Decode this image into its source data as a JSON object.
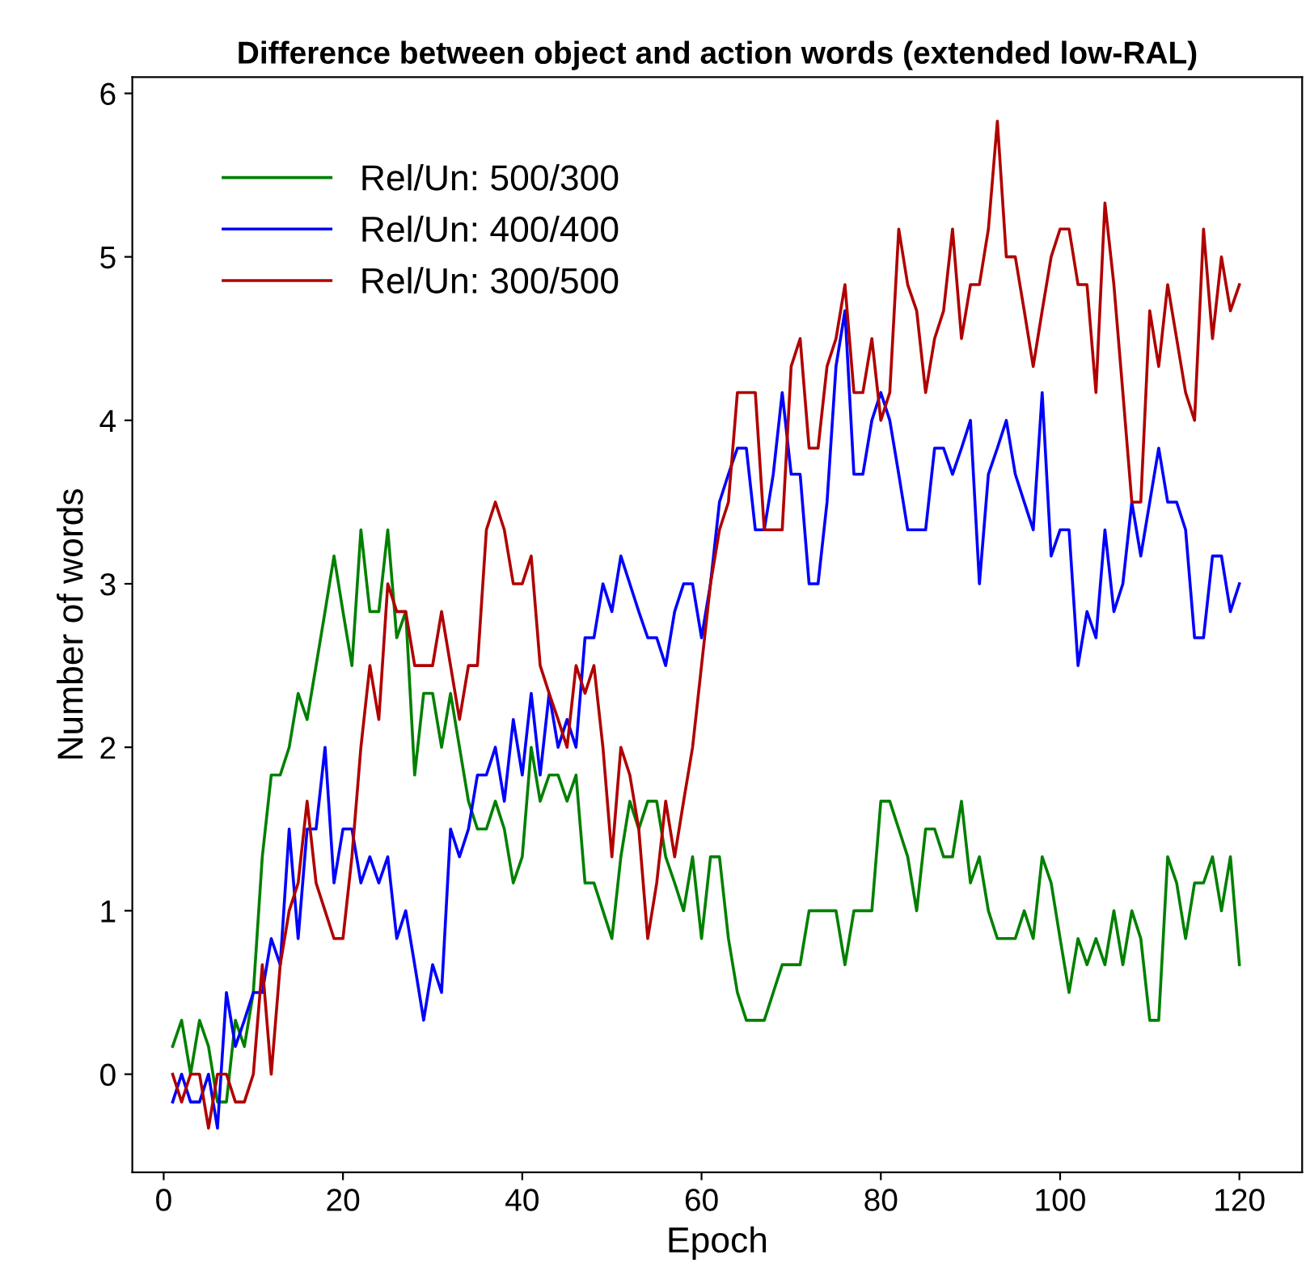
{
  "chart_data": {
    "type": "line",
    "title": "Difference between object and action words (extended low-RAL)",
    "xlabel": "Epoch",
    "ylabel": "Number of words",
    "x": [
      1,
      2,
      3,
      4,
      5,
      6,
      7,
      8,
      9,
      10,
      11,
      12,
      13,
      14,
      15,
      16,
      17,
      18,
      19,
      20,
      21,
      22,
      23,
      24,
      25,
      26,
      27,
      28,
      29,
      30,
      31,
      32,
      33,
      34,
      35,
      36,
      37,
      38,
      39,
      40,
      41,
      42,
      43,
      44,
      45,
      46,
      47,
      48,
      49,
      50,
      51,
      52,
      53,
      54,
      55,
      56,
      57,
      58,
      59,
      60,
      61,
      62,
      63,
      64,
      65,
      66,
      67,
      68,
      69,
      70,
      71,
      72,
      73,
      74,
      75,
      76,
      77,
      78,
      79,
      80,
      81,
      82,
      83,
      84,
      85,
      86,
      87,
      88,
      89,
      90,
      91,
      92,
      93,
      94,
      95,
      96,
      97,
      98,
      99,
      100,
      101,
      102,
      103,
      104,
      105,
      106,
      107,
      108,
      109,
      110,
      111,
      112,
      113,
      114,
      115,
      116,
      117,
      118,
      119,
      120
    ],
    "series": [
      {
        "name": "Rel/Un: 500/300",
        "color": "#008000",
        "values": [
          0.17,
          0.33,
          0.0,
          0.33,
          0.17,
          -0.17,
          -0.17,
          0.33,
          0.17,
          0.5,
          1.33,
          1.83,
          1.83,
          2.0,
          2.33,
          2.17,
          2.5,
          2.83,
          3.17,
          2.83,
          2.5,
          3.33,
          2.83,
          2.83,
          3.33,
          2.67,
          2.83,
          1.83,
          2.33,
          2.33,
          2.0,
          2.33,
          2.0,
          1.67,
          1.5,
          1.5,
          1.67,
          1.5,
          1.17,
          1.33,
          2.0,
          1.67,
          1.83,
          1.83,
          1.67,
          1.83,
          1.17,
          1.17,
          1.0,
          0.83,
          1.33,
          1.67,
          1.5,
          1.67,
          1.67,
          1.33,
          1.17,
          1.0,
          1.33,
          0.83,
          1.33,
          1.33,
          0.83,
          0.5,
          0.33,
          0.33,
          0.33,
          0.5,
          0.67,
          0.67,
          0.67,
          1.0,
          1.0,
          1.0,
          1.0,
          0.67,
          1.0,
          1.0,
          1.0,
          1.67,
          1.67,
          1.5,
          1.33,
          1.0,
          1.5,
          1.5,
          1.33,
          1.33,
          1.67,
          1.17,
          1.33,
          1.0,
          0.83,
          0.83,
          0.83,
          1.0,
          0.83,
          1.33,
          1.17,
          0.83,
          0.5,
          0.83,
          0.67,
          0.83,
          0.67,
          1.0,
          0.67,
          1.0,
          0.83,
          0.33,
          0.33,
          1.33,
          1.17,
          0.83,
          1.17,
          1.17,
          1.33,
          1.0,
          1.33,
          0.67
        ]
      },
      {
        "name": "Rel/Un: 400/400",
        "color": "#0000ff",
        "values": [
          -0.17,
          0.0,
          -0.17,
          -0.17,
          0.0,
          -0.33,
          0.5,
          0.17,
          0.33,
          0.5,
          0.5,
          0.83,
          0.67,
          1.5,
          0.83,
          1.5,
          1.5,
          2.0,
          1.17,
          1.5,
          1.5,
          1.17,
          1.33,
          1.17,
          1.33,
          0.83,
          1.0,
          0.67,
          0.33,
          0.67,
          0.5,
          1.5,
          1.33,
          1.5,
          1.83,
          1.83,
          2.0,
          1.67,
          2.17,
          1.83,
          2.33,
          1.83,
          2.33,
          2.0,
          2.17,
          2.0,
          2.67,
          2.67,
          3.0,
          2.83,
          3.17,
          3.0,
          2.83,
          2.67,
          2.67,
          2.5,
          2.83,
          3.0,
          3.0,
          2.67,
          3.0,
          3.5,
          3.67,
          3.83,
          3.83,
          3.33,
          3.33,
          3.67,
          4.17,
          3.67,
          3.67,
          3.0,
          3.0,
          3.5,
          4.33,
          4.67,
          3.67,
          3.67,
          4.0,
          4.17,
          4.0,
          3.67,
          3.33,
          3.33,
          3.33,
          3.83,
          3.83,
          3.67,
          3.83,
          4.0,
          3.0,
          3.67,
          3.83,
          4.0,
          3.67,
          3.5,
          3.33,
          4.17,
          3.17,
          3.33,
          3.33,
          2.5,
          2.83,
          2.67,
          3.33,
          2.83,
          3.0,
          3.5,
          3.17,
          3.5,
          3.83,
          3.5,
          3.5,
          3.33,
          2.67,
          2.67,
          3.17,
          3.17,
          2.83,
          3.0
        ]
      },
      {
        "name": "Rel/Un: 300/500",
        "color": "#b00000",
        "values": [
          0.0,
          -0.17,
          0.0,
          0.0,
          -0.33,
          0.0,
          0.0,
          -0.17,
          -0.17,
          0.0,
          0.67,
          0.0,
          0.67,
          1.0,
          1.17,
          1.67,
          1.17,
          1.0,
          0.83,
          0.83,
          1.33,
          2.0,
          2.5,
          2.17,
          3.0,
          2.83,
          2.83,
          2.5,
          2.5,
          2.5,
          2.83,
          2.5,
          2.17,
          2.5,
          2.5,
          3.33,
          3.5,
          3.33,
          3.0,
          3.0,
          3.17,
          2.5,
          2.33,
          2.17,
          2.0,
          2.5,
          2.33,
          2.5,
          2.0,
          1.33,
          2.0,
          1.83,
          1.5,
          0.83,
          1.17,
          1.67,
          1.33,
          1.67,
          2.0,
          2.5,
          3.0,
          3.33,
          3.5,
          4.17,
          4.17,
          4.17,
          3.33,
          3.33,
          3.33,
          4.33,
          4.5,
          3.83,
          3.83,
          4.33,
          4.5,
          4.83,
          4.17,
          4.17,
          4.5,
          4.0,
          4.17,
          5.17,
          4.83,
          4.67,
          4.17,
          4.5,
          4.67,
          5.17,
          4.5,
          4.83,
          4.83,
          5.17,
          5.83,
          5.0,
          5.0,
          4.67,
          4.33,
          4.67,
          5.0,
          5.17,
          5.17,
          4.83,
          4.83,
          4.17,
          5.33,
          4.83,
          4.17,
          3.5,
          3.5,
          4.67,
          4.33,
          4.83,
          4.5,
          4.17,
          4.0,
          5.17,
          4.5,
          5.0,
          4.67,
          4.83
        ]
      }
    ],
    "xlim": [
      -3.5,
      127
    ],
    "xticks": [
      0,
      20,
      40,
      60,
      80,
      100,
      120
    ],
    "ylim": [
      -0.6,
      6.1
    ],
    "yticks": [
      0,
      1,
      2,
      3,
      4,
      5,
      6
    ],
    "grid": false,
    "legend": "top left",
    "marker": "none",
    "line_style": "solid"
  }
}
